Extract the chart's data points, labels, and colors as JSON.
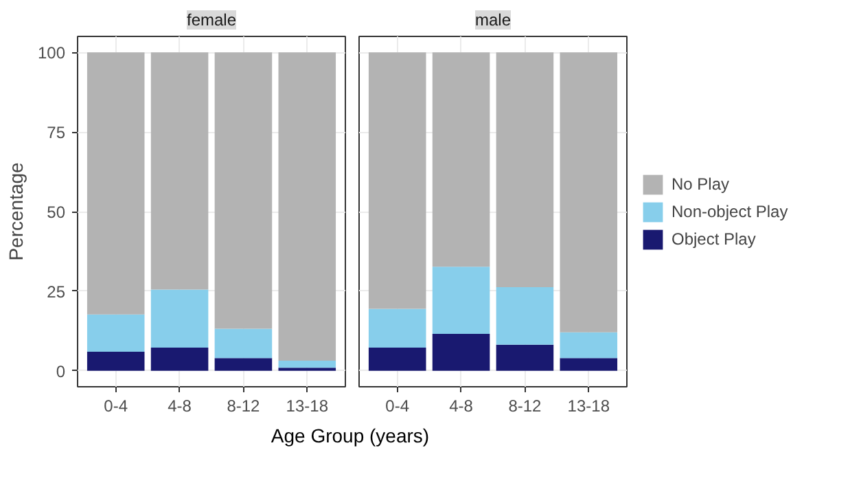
{
  "chart_data": [
    {
      "type": "bar",
      "title": "female",
      "ylabel": "Percentage",
      "xlabel": "Age Group (years)",
      "categories": [
        "0-4",
        "4-8",
        "8-12",
        "13-18"
      ],
      "stacked": true,
      "ylim": [
        -5,
        105
      ],
      "yticks": [
        0,
        25,
        50,
        75,
        100
      ],
      "grid": true,
      "series": [
        {
          "color": "#191970",
          "values": [
            6,
            7.3,
            4,
            1
          ]
        },
        {
          "color": "#87ceeb",
          "values": [
            11.7,
            18.2,
            9.2,
            2.2
          ]
        },
        {
          "color": "#b3b3b3",
          "values": [
            82.3,
            74.5,
            86.8,
            96.8
          ]
        }
      ]
    },
    {
      "type": "bar",
      "title": "male",
      "categories": [
        "0-4",
        "4-8",
        "8-12",
        "13-18"
      ],
      "stacked": true,
      "ylim": [
        -5,
        105
      ],
      "yticks": [
        0,
        25,
        50,
        75,
        100
      ],
      "grid": true,
      "tick_labels": "x",
      "legend": "right",
      "series": [
        {
          "name": "Object Play",
          "color": "#191970",
          "values": [
            7.3,
            11.6,
            8.2,
            4
          ]
        },
        {
          "name": "Non-object Play",
          "color": "#87ceeb",
          "values": [
            12.2,
            21.1,
            18.1,
            8.1
          ]
        },
        {
          "name": "No Play",
          "color": "#b3b3b3",
          "values": [
            80.5,
            67.3,
            73.7,
            87.9
          ]
        }
      ]
    }
  ]
}
